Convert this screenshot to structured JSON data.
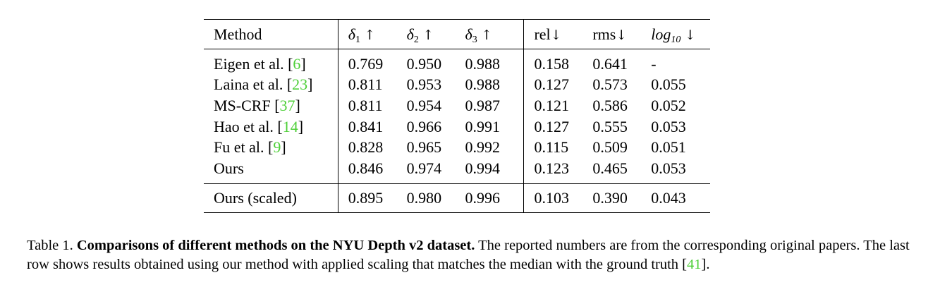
{
  "table": {
    "header": {
      "method": "Method",
      "delta1": {
        "sym": "δ",
        "sub": "1",
        "arrow": "↑"
      },
      "delta2": {
        "sym": "δ",
        "sub": "2",
        "arrow": "↑"
      },
      "delta3": {
        "sym": "δ",
        "sub": "3",
        "arrow": "↑"
      },
      "rel": {
        "text": "rel",
        "arrow": "↓"
      },
      "rms": {
        "text": "rms",
        "arrow": "↓"
      },
      "log10": {
        "text": "log",
        "sub": "10",
        "arrow": "↓"
      }
    },
    "rows": [
      {
        "name": "Eigen et al. ",
        "cite": "6",
        "d1": "0.769",
        "d2": "0.950",
        "d3": "0.988",
        "rel": "0.158",
        "rms": "0.641",
        "log10": "-"
      },
      {
        "name": "Laina et al. ",
        "cite": "23",
        "d1": "0.811",
        "d2": "0.953",
        "d3": "0.988",
        "rel": "0.127",
        "rms": "0.573",
        "log10": "0.055"
      },
      {
        "name": "MS-CRF ",
        "cite": "37",
        "d1": "0.811",
        "d2": "0.954",
        "d3": "0.987",
        "rel": "0.121",
        "rms": "0.586",
        "log10": "0.052"
      },
      {
        "name": "Hao et al. ",
        "cite": "14",
        "d1": "0.841",
        "d2": "0.966",
        "d3": "0.991",
        "rel": "0.127",
        "rms": "0.555",
        "log10": "0.053"
      },
      {
        "name": "Fu et al. ",
        "cite": "9",
        "d1": "0.828",
        "d2": "0.965",
        "d3": "0.992",
        "rel": "0.115",
        "rms": "0.509",
        "log10": "0.051"
      },
      {
        "name": "Ours",
        "cite": "",
        "d1": "0.846",
        "d2": "0.974",
        "d3": "0.994",
        "rel": "0.123",
        "rms": "0.465",
        "log10": "0.053"
      }
    ],
    "scaled_row": {
      "name": "Ours (scaled)",
      "d1": "0.895",
      "d2": "0.980",
      "d3": "0.996",
      "rel": "0.103",
      "rms": "0.390",
      "log10": "0.043"
    }
  },
  "caption": {
    "label": "Table 1.",
    "title": "Comparisons of different methods on the NYU Depth v2 dataset.",
    "body_part1": "The reported numbers are from the corresponding original papers. The last row shows results obtained using our method with applied scaling that matches the median with the ground truth [",
    "cite": "41",
    "body_part2": "]."
  },
  "colors": {
    "citation": "#4dcf37",
    "text": "#000000"
  }
}
